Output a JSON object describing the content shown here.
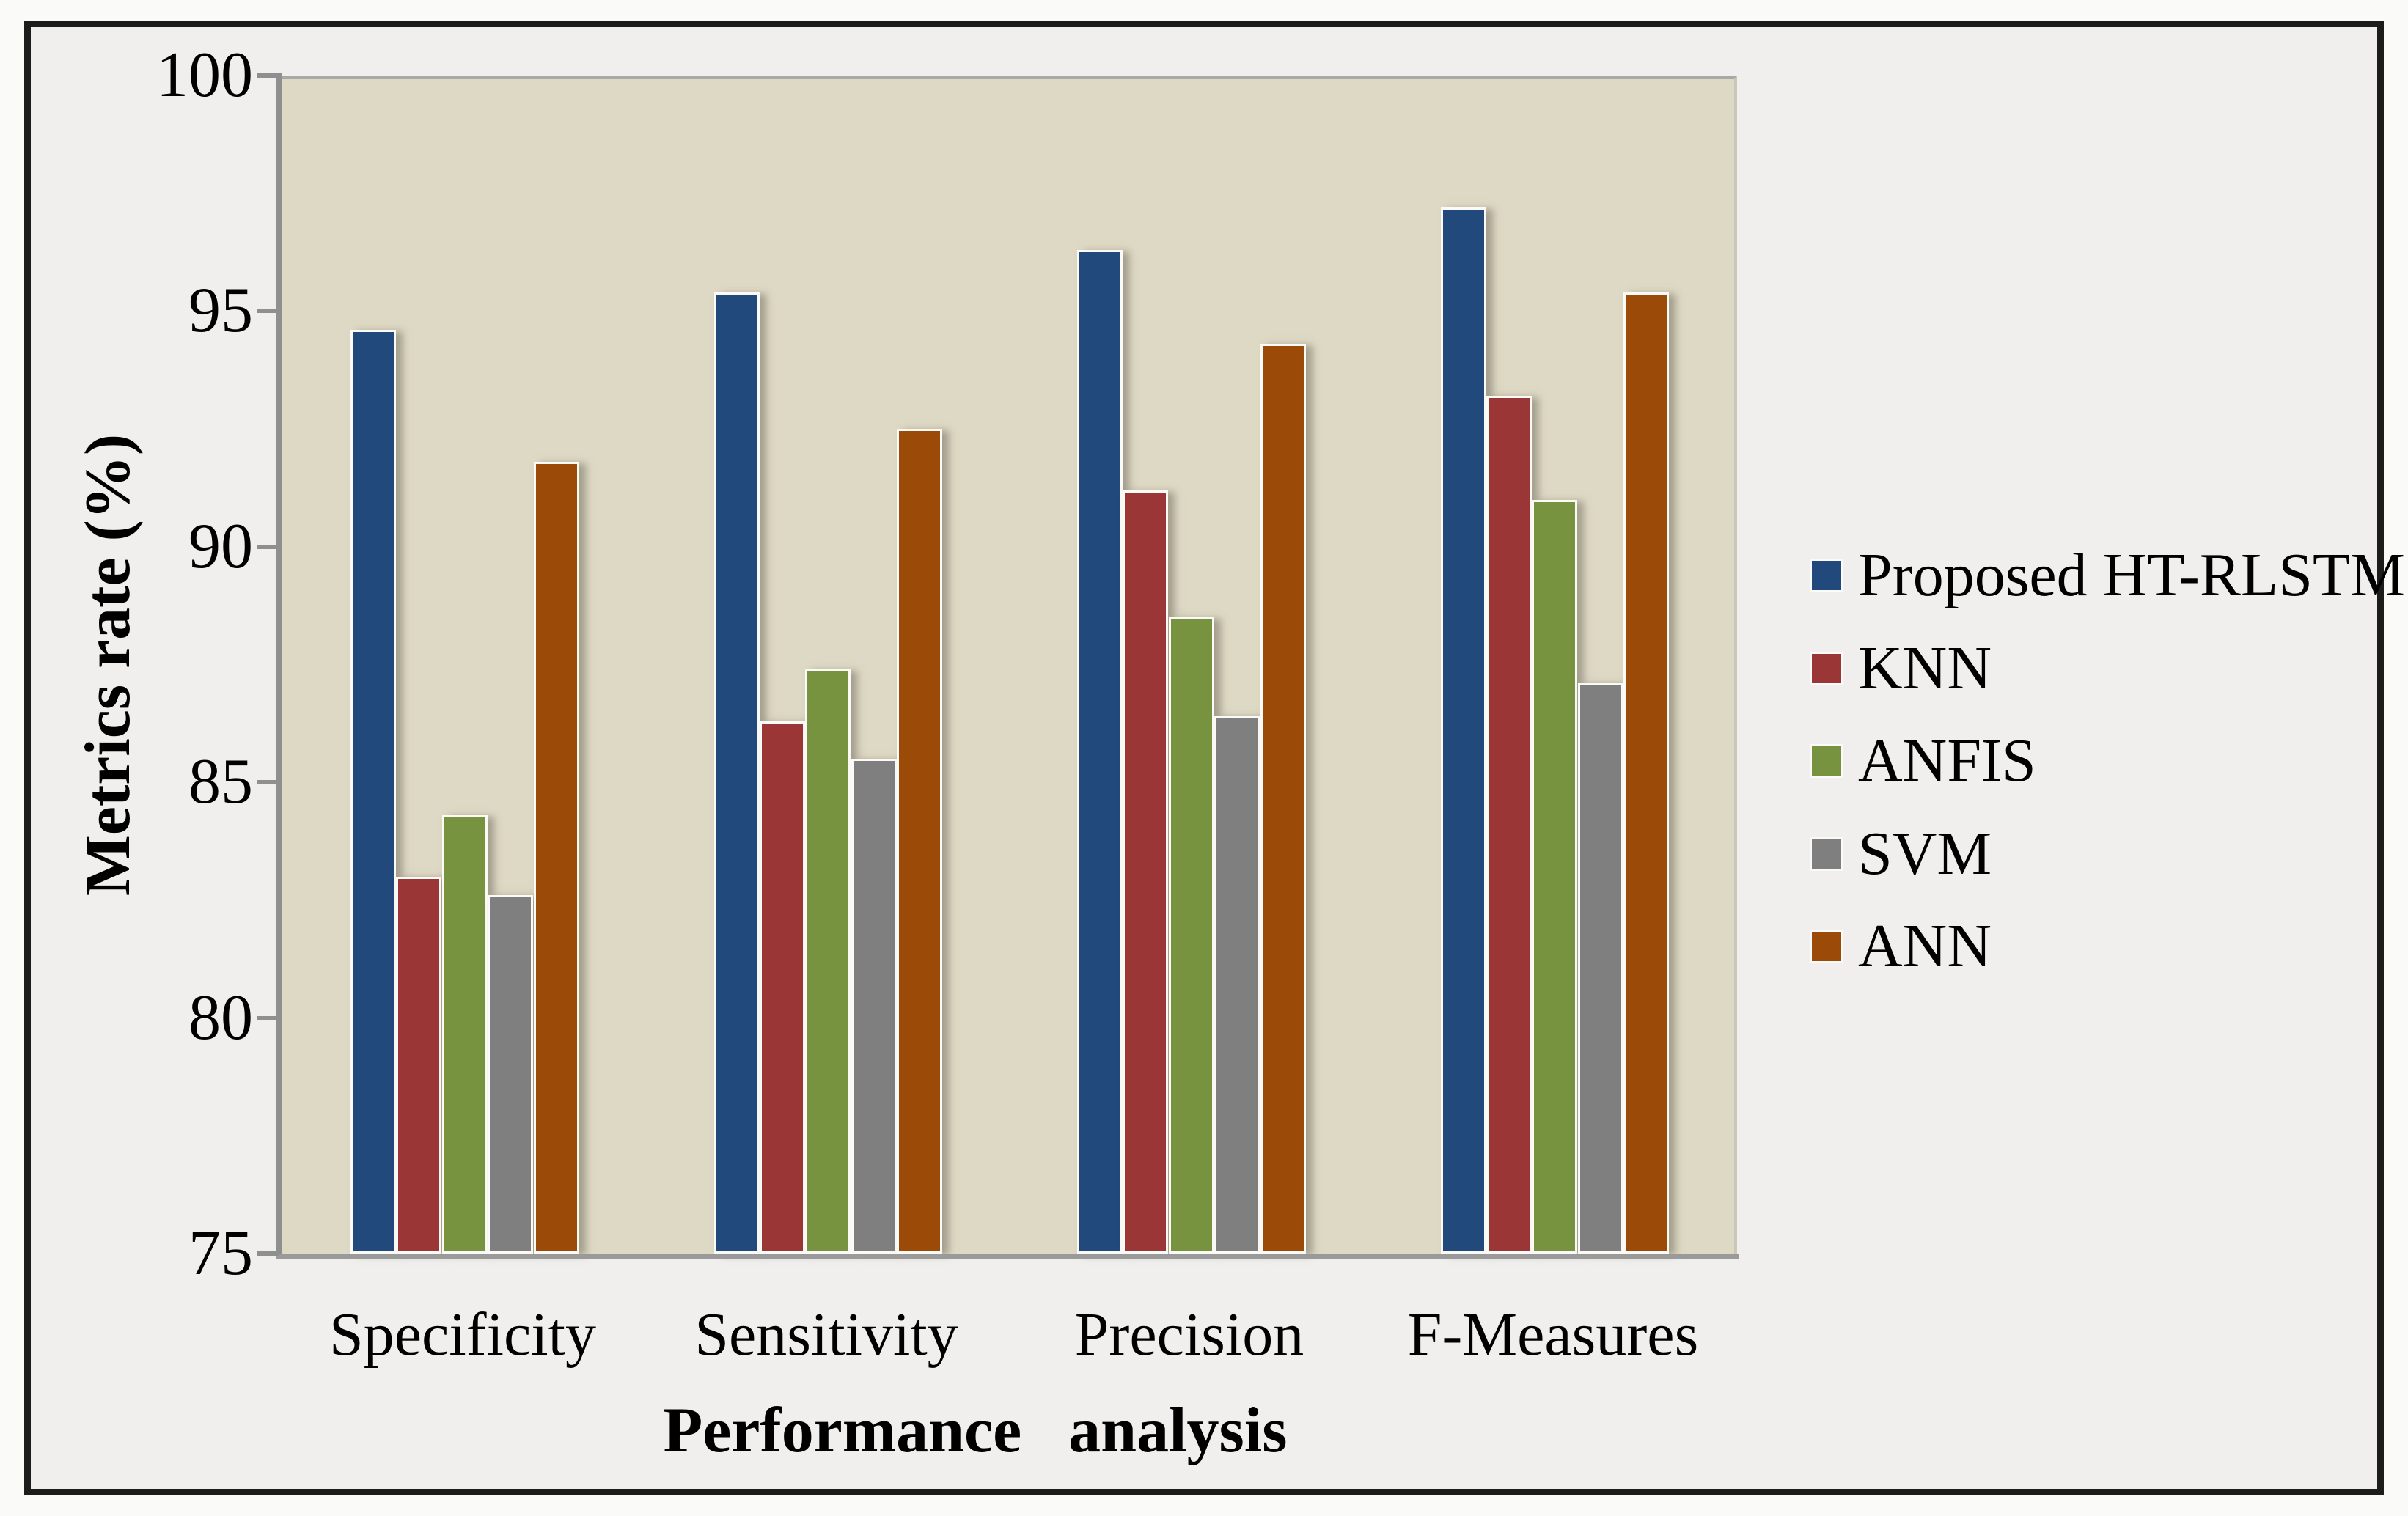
{
  "chart_data": {
    "type": "bar",
    "title": "",
    "xlabel": "Performance analysis",
    "ylabel": "Metrics rate (%)",
    "ylim": [
      75,
      100
    ],
    "yticks": [
      100,
      95,
      90,
      85,
      80,
      75
    ],
    "categories": [
      "Specificity",
      "Sensitivity",
      "Precision",
      "F-Measures"
    ],
    "series": [
      {
        "name": "Proposed HT-RLSTM",
        "color": "#21497B",
        "values": [
          94.6,
          95.4,
          96.3,
          97.2
        ]
      },
      {
        "name": "KNN",
        "color": "#9A3635",
        "values": [
          83.0,
          86.3,
          91.2,
          93.2
        ]
      },
      {
        "name": "ANFIS",
        "color": "#789340",
        "values": [
          84.3,
          87.4,
          88.5,
          91.0
        ]
      },
      {
        "name": "SVM",
        "color": "#7F7F7F",
        "values": [
          82.6,
          85.5,
          86.4,
          87.1
        ]
      },
      {
        "name": "ANN",
        "color": "#9C4A07",
        "values": [
          91.8,
          92.5,
          94.3,
          95.4
        ]
      }
    ],
    "legend_position": "right",
    "grid": false,
    "plot_bg": "#DED9C4",
    "canvas_bg": "#F0EFED",
    "frame_border_color": "#1C1C1C",
    "axis_color": "#8F8F8F"
  }
}
